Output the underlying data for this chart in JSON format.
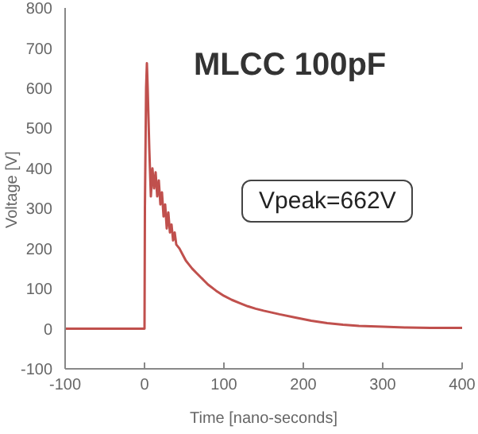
{
  "chart_data": {
    "type": "line",
    "title": "MLCC 100pF",
    "xlabel": "Time [nano-seconds]",
    "ylabel": "Voltage [V]",
    "annotations": [
      "Vpeak=662V"
    ],
    "x": [
      -100,
      -50,
      0,
      0.5,
      2,
      3,
      4,
      6,
      8,
      10,
      12,
      14,
      16,
      18,
      20,
      22,
      24,
      26,
      28,
      30,
      32,
      34,
      36,
      38,
      40,
      44,
      48,
      52,
      56,
      60,
      65,
      70,
      75,
      80,
      90,
      100,
      110,
      120,
      130,
      140,
      150,
      170,
      190,
      210,
      230,
      250,
      270,
      300,
      330,
      360,
      400
    ],
    "series": [
      {
        "color": "#c0504d",
        "values": [
          0,
          0,
          0,
          300,
          600,
          662,
          600,
          450,
          330,
          400,
          350,
          390,
          330,
          370,
          310,
          340,
          280,
          310,
          250,
          290,
          240,
          260,
          220,
          240,
          210,
          200,
          185,
          170,
          160,
          150,
          140,
          130,
          120,
          110,
          95,
          82,
          72,
          64,
          56,
          50,
          45,
          36,
          28,
          20,
          14,
          10,
          7,
          5,
          3,
          2,
          2
        ]
      }
    ],
    "xlim": [
      -100,
      400
    ],
    "xticks": [
      -100,
      0,
      100,
      200,
      300,
      400
    ],
    "ylim": [
      -100,
      800
    ],
    "yticks": [
      -100,
      0,
      100,
      200,
      300,
      400,
      500,
      600,
      700,
      800
    ],
    "grid": false,
    "legend": false,
    "marker": "none",
    "line_style": "solid"
  }
}
